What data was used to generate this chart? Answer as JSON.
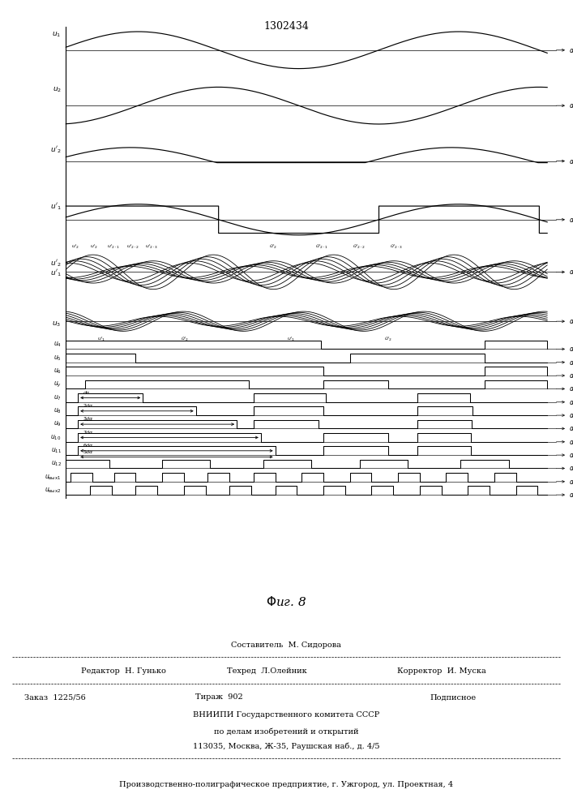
{
  "title": "1302434",
  "bg_color": "#ffffff",
  "line_color": "#000000",
  "footer_lines": [
    "Составитель  М. Сидорова",
    "Редактор  Н. Гунько",
    "Техред  Л.Олейник",
    "Корректор  И. Муска",
    "Заказ  1225/56",
    "Тираж  902",
    "Подписное",
    "ВНИИПИ Государственного комитета СССР",
    "по делам изобретений и открытий",
    "113035, Москва, Ж-35, Раушская наб., д. 4/5",
    "Производственно-полиграфическое предприятие, г. Ужгород, ул. Проектная, 4"
  ]
}
